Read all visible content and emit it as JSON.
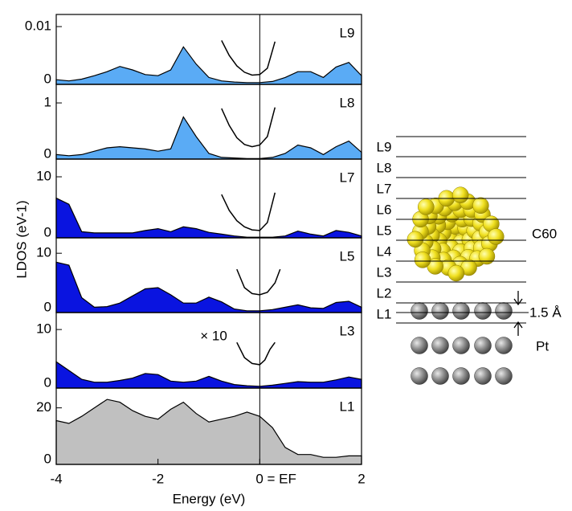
{
  "chart_data": [
    {
      "type": "area",
      "title": "L9",
      "ylabel": "LDOS (eV-1)",
      "color": "#5aabf5",
      "x": [
        -4,
        -3.75,
        -3.5,
        -3.25,
        -3,
        -2.75,
        -2.5,
        -2.25,
        -2,
        -1.75,
        -1.5,
        -1.25,
        -1,
        -0.75,
        -0.5,
        -0.25,
        0,
        0.25,
        0.5,
        0.75,
        1,
        1.25,
        1.5,
        1.75,
        2
      ],
      "values": [
        0.0008,
        0.0006,
        0.0009,
        0.0015,
        0.0022,
        0.0031,
        0.0025,
        0.0017,
        0.0015,
        0.0025,
        0.0065,
        0.0035,
        0.0012,
        0.0006,
        0.0004,
        0.0003,
        0.0003,
        0.0005,
        0.0012,
        0.0022,
        0.0022,
        0.0012,
        0.003,
        0.0038,
        0.0015
      ],
      "inset_x": [
        -0.75,
        -0.6,
        -0.45,
        -0.3,
        -0.15,
        0,
        0.15,
        0.3
      ],
      "inset_values": [
        0.0076,
        0.005,
        0.0032,
        0.0021,
        0.0016,
        0.0017,
        0.0028,
        0.0074
      ],
      "xlim": [
        -4,
        2
      ],
      "ylim": [
        0,
        0.0121
      ],
      "yticks": [
        0,
        0.01
      ]
    },
    {
      "type": "area",
      "title": "L8",
      "color": "#5aabf5",
      "x": [
        -4,
        -3.75,
        -3.5,
        -3.25,
        -3,
        -2.75,
        -2.5,
        -2.25,
        -2,
        -1.75,
        -1.5,
        -1.25,
        -1,
        -0.75,
        -0.5,
        -0.25,
        0,
        0.25,
        0.5,
        0.75,
        1,
        1.25,
        1.5,
        1.75,
        2
      ],
      "values": [
        0.08,
        0.06,
        0.08,
        0.14,
        0.2,
        0.22,
        0.2,
        0.18,
        0.14,
        0.18,
        0.75,
        0.4,
        0.1,
        0.03,
        0.02,
        0.01,
        0.01,
        0.03,
        0.1,
        0.25,
        0.2,
        0.08,
        0.22,
        0.32,
        0.12
      ],
      "inset_x": [
        -0.75,
        -0.6,
        -0.45,
        -0.3,
        -0.15,
        0,
        0.15,
        0.3
      ],
      "inset_values": [
        0.9,
        0.6,
        0.38,
        0.26,
        0.22,
        0.25,
        0.4,
        0.92
      ],
      "xlim": [
        -4,
        2
      ],
      "ylim": [
        0,
        1.33
      ],
      "yticks": [
        0,
        1
      ]
    },
    {
      "type": "area",
      "title": "L7",
      "color": "#0a14e0",
      "x": [
        -4,
        -3.75,
        -3.5,
        -3.25,
        -3,
        -2.75,
        -2.5,
        -2.25,
        -2,
        -1.75,
        -1.5,
        -1.25,
        -1,
        -0.75,
        -0.5,
        -0.25,
        0,
        0.25,
        0.5,
        0.75,
        1,
        1.25,
        1.5,
        1.75,
        2
      ],
      "values": [
        6.5,
        5.5,
        1,
        0.8,
        0.8,
        0.8,
        0.8,
        1.2,
        1.5,
        1,
        1.8,
        1.5,
        0.9,
        0.6,
        0.3,
        0.1,
        0.1,
        0.1,
        0.3,
        1.1,
        0.6,
        0.3,
        1.2,
        0.9,
        0.3
      ],
      "inset_x": [
        -0.75,
        -0.6,
        -0.45,
        -0.3,
        -0.15,
        0,
        0.15,
        0.3
      ],
      "inset_values": [
        7.1,
        4.5,
        2.8,
        1.8,
        1.3,
        1.2,
        2.5,
        7.4
      ],
      "xlim": [
        -4,
        2
      ],
      "ylim": [
        0,
        12.9
      ],
      "yticks": [
        0,
        10
      ]
    },
    {
      "type": "area",
      "title": "L5",
      "color": "#0a14e0",
      "x": [
        -4,
        -3.75,
        -3.5,
        -3.25,
        -3,
        -2.75,
        -2.5,
        -2.25,
        -2,
        -1.75,
        -1.5,
        -1.25,
        -1,
        -0.75,
        -0.5,
        -0.25,
        0,
        0.25,
        0.5,
        0.75,
        1,
        1.25,
        1.5,
        1.75,
        2
      ],
      "values": [
        8.5,
        8,
        2.5,
        0.9,
        1,
        1.6,
        2.8,
        4,
        4.2,
        3,
        1.6,
        1.6,
        2.6,
        1.8,
        0.6,
        0.3,
        0.3,
        0.5,
        0.9,
        1.3,
        0.8,
        0.7,
        1.7,
        1.9,
        0.9
      ],
      "inset_x": [
        -0.45,
        -0.3,
        -0.15,
        0,
        0.15,
        0.3,
        0.4
      ],
      "inset_values": [
        7.3,
        4.2,
        3.2,
        3,
        3.4,
        5,
        7.3
      ],
      "xlim": [
        -4,
        2
      ],
      "ylim": [
        0,
        12.6
      ],
      "yticks": [
        0,
        10
      ]
    },
    {
      "type": "area",
      "title": "L3",
      "annotation": "× 10",
      "color": "#0a14e0",
      "x": [
        -4,
        -3.75,
        -3.5,
        -3.25,
        -3,
        -2.75,
        -2.5,
        -2.25,
        -2,
        -1.75,
        -1.5,
        -1.25,
        -1,
        -0.75,
        -0.5,
        -0.25,
        0,
        0.25,
        0.5,
        0.75,
        1,
        1.25,
        1.5,
        1.75,
        2
      ],
      "values": [
        4.5,
        3,
        1.5,
        1,
        1,
        1.3,
        1.7,
        2.5,
        2.3,
        1.2,
        1,
        1.2,
        2,
        1.2,
        0.6,
        0.4,
        0.3,
        0.5,
        0.8,
        1.1,
        1,
        1,
        1.4,
        1.9,
        1.5
      ],
      "inset_x": [
        -0.45,
        -0.3,
        -0.15,
        0,
        0.1,
        0.2,
        0.3
      ],
      "inset_values": [
        7.8,
        5.2,
        4.2,
        4,
        4.8,
        6.6,
        7.8
      ],
      "xlim": [
        -4,
        2
      ],
      "ylim": [
        0,
        12.9
      ],
      "yticks": [
        0,
        10
      ]
    },
    {
      "type": "area",
      "title": "L1",
      "xlabel": "Energy (eV)",
      "color": "#c0c0c0",
      "x": [
        -4,
        -3.75,
        -3.5,
        -3.25,
        -3,
        -2.75,
        -2.5,
        -2.25,
        -2,
        -1.75,
        -1.5,
        -1.25,
        -1,
        -0.75,
        -0.5,
        -0.25,
        0,
        0.25,
        0.5,
        0.75,
        1,
        1.25,
        1.5,
        1.75,
        2
      ],
      "values": [
        15.5,
        14.5,
        17,
        20,
        23,
        22,
        19,
        17,
        16,
        19.5,
        22,
        18,
        15,
        16,
        17,
        18.5,
        17,
        13,
        6,
        3.5,
        3.5,
        2.5,
        2.5,
        3,
        3
      ],
      "xlim": [
        -4,
        2
      ],
      "ylim": [
        0,
        27
      ],
      "yticks": [
        0,
        20
      ],
      "xticks": [
        -4,
        -2,
        {
          "value": 0,
          "label": "0 = EF"
        },
        2
      ]
    }
  ],
  "diagram": {
    "layers": [
      "L9",
      "L8",
      "L7",
      "L6",
      "L5",
      "L4",
      "L3",
      "L2",
      "L1"
    ],
    "molecule": "C60",
    "substrate": "Pt",
    "spacing": "1.5 Å"
  }
}
